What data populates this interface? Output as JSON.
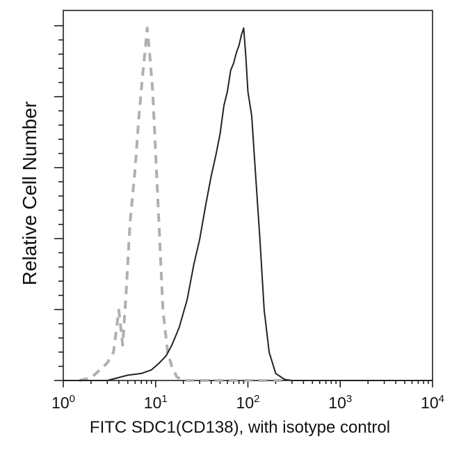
{
  "chart_data": {
    "type": "line",
    "title": "",
    "xlabel": "FITC SDC1(CD138), with isotype control",
    "ylabel": "Relative Cell Number",
    "x_scale": "log",
    "xlim": [
      1,
      10000
    ],
    "ylim": [
      0,
      1.05
    ],
    "y_tick_labels_shown": false,
    "x_ticks": [
      {
        "value": 1,
        "base": "10",
        "exp": "0"
      },
      {
        "value": 10,
        "base": "10",
        "exp": "1"
      },
      {
        "value": 100,
        "base": "10",
        "exp": "2"
      },
      {
        "value": 1000,
        "base": "10",
        "exp": "3"
      },
      {
        "value": 10000,
        "base": "10",
        "exp": "4"
      }
    ],
    "grid": false,
    "legend": "none",
    "series": [
      {
        "style": "dashed",
        "color": "#b0b0b0",
        "points": [
          [
            1.5,
            0
          ],
          [
            2.0,
            0.008
          ],
          [
            2.5,
            0.03
          ],
          [
            3.0,
            0.05
          ],
          [
            3.5,
            0.08
          ],
          [
            4.0,
            0.2
          ],
          [
            4.4,
            0.1
          ],
          [
            4.8,
            0.25
          ],
          [
            5.3,
            0.45
          ],
          [
            6.0,
            0.6
          ],
          [
            6.6,
            0.75
          ],
          [
            7.2,
            0.86
          ],
          [
            7.8,
            0.95
          ],
          [
            8.1,
            1.0
          ],
          [
            8.6,
            0.93
          ],
          [
            9.3,
            0.82
          ],
          [
            10.2,
            0.6
          ],
          [
            11.0,
            0.42
          ],
          [
            12.0,
            0.2
          ],
          [
            13.5,
            0.08
          ],
          [
            15.0,
            0.04
          ],
          [
            17.0,
            0.01
          ],
          [
            20.0,
            0
          ],
          [
            30.0,
            0
          ],
          [
            150.0,
            0
          ],
          [
            250.0,
            0
          ]
        ]
      },
      {
        "style": "solid",
        "color": "#222222",
        "points": [
          [
            1.0,
            0
          ],
          [
            3.0,
            0
          ],
          [
            5.0,
            0.015
          ],
          [
            7.0,
            0.02
          ],
          [
            9.0,
            0.03
          ],
          [
            11.0,
            0.05
          ],
          [
            13.0,
            0.07
          ],
          [
            15.0,
            0.1
          ],
          [
            18.0,
            0.15
          ],
          [
            22.0,
            0.23
          ],
          [
            26.0,
            0.33
          ],
          [
            30.0,
            0.4
          ],
          [
            35.0,
            0.5
          ],
          [
            40.0,
            0.58
          ],
          [
            45.0,
            0.64
          ],
          [
            50.0,
            0.7
          ],
          [
            55.0,
            0.78
          ],
          [
            60.0,
            0.82
          ],
          [
            65.0,
            0.88
          ],
          [
            70.0,
            0.9
          ],
          [
            75.0,
            0.93
          ],
          [
            80.0,
            0.95
          ],
          [
            85.0,
            0.98
          ],
          [
            90.0,
            1.0
          ],
          [
            95.0,
            0.92
          ],
          [
            100.0,
            0.82
          ],
          [
            110.0,
            0.75
          ],
          [
            120.0,
            0.6
          ],
          [
            135.0,
            0.4
          ],
          [
            150.0,
            0.2
          ],
          [
            170.0,
            0.08
          ],
          [
            200.0,
            0.02
          ],
          [
            250.0,
            0.003
          ],
          [
            300.0,
            0
          ],
          [
            1000.0,
            0
          ],
          [
            10000.0,
            0
          ]
        ]
      }
    ]
  }
}
